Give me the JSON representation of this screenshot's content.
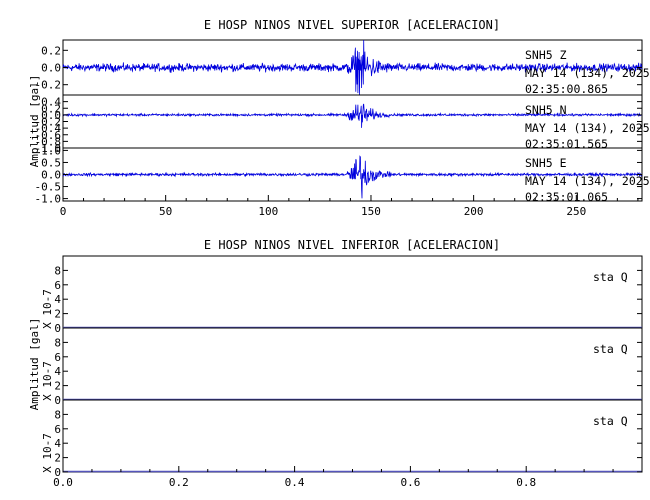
{
  "figure": {
    "upper_title": "E HOSP NINOS NIVEL SUPERIOR [ACELERACION]",
    "lower_title": "E HOSP NINOS NIVEL INFERIOR [ACELERACION]",
    "ylabel_upper": "Amplitud [gal]",
    "ylabel_lower": "Amplitud [gal]",
    "scale_label": "X 10-7",
    "trace_color": "#0000dd",
    "flat_color": "#5555bb"
  },
  "chart_data": [
    {
      "type": "line",
      "title": "E HOSP NINOS NIVEL SUPERIOR [ACELERACION]",
      "ylabel": "Amplitud [gal]",
      "xlabel": "",
      "xlim": [
        0,
        282
      ],
      "x_ticks": [
        "0",
        "50",
        "100",
        "150",
        "200",
        "250"
      ],
      "event_window_s": [
        138,
        160
      ],
      "event_peak_s": 145,
      "series": [
        {
          "name": "SNH5 Z",
          "component": "Z",
          "station_label": "SNH5 Z",
          "date_label": "MAY 14 (134), 2025",
          "time_label": "02:35:00.865",
          "ylim": [
            -0.32,
            0.32
          ],
          "y_ticks": [
            "0.2",
            "0.0",
            "-0.2"
          ],
          "noise_amplitude": 0.04,
          "peak_amplitude": 0.3
        },
        {
          "name": "SNH5 N",
          "component": "N",
          "station_label": "SNH5 N",
          "date_label": "MAY 14 (134), 2025",
          "time_label": "02:35:01.565",
          "ylim": [
            -1.0,
            0.6
          ],
          "y_ticks": [
            "0.4",
            "0.2",
            "0.0",
            "-0.2",
            "-0.4",
            "-0.6",
            "-0.8",
            "-1.0"
          ],
          "noise_amplitude": 0.03,
          "peak_amplitude": 0.45
        },
        {
          "name": "SNH5 E",
          "component": "E",
          "station_label": "SNH5 E",
          "date_label": "MAY 14 (134), 2025",
          "time_label": "02:35:01.065",
          "ylim": [
            -1.1,
            1.1
          ],
          "y_ticks": [
            "1.0",
            "0.5",
            "0.0",
            "-0.5",
            "-1.0"
          ],
          "noise_amplitude": 0.05,
          "peak_amplitude": 0.9
        }
      ]
    },
    {
      "type": "line",
      "title": "E HOSP NINOS NIVEL INFERIOR [ACELERACION]",
      "ylabel": "Amplitud [gal]",
      "xlabel": "",
      "xlim": [
        0,
        1
      ],
      "x_ticks": [
        "0.0",
        "0.2",
        "0.4",
        "0.6",
        "0.8"
      ],
      "series": [
        {
          "name": "sta Q",
          "station_label": "sta Q",
          "ylim": [
            0,
            10
          ],
          "y_ticks": [
            "8",
            "6",
            "4",
            "2",
            "0"
          ],
          "scale_label": "X 10-7",
          "values": [
            0,
            0
          ]
        },
        {
          "name": "sta Q",
          "station_label": "sta Q",
          "ylim": [
            0,
            10
          ],
          "y_ticks": [
            "8",
            "6",
            "4",
            "2",
            "0"
          ],
          "scale_label": "X 10-7",
          "values": [
            0,
            0
          ]
        },
        {
          "name": "sta Q",
          "station_label": "sta Q",
          "ylim": [
            0,
            10
          ],
          "y_ticks": [
            "8",
            "6",
            "4",
            "2",
            "0"
          ],
          "scale_label": "X 10-7",
          "values": [
            0,
            0
          ]
        }
      ]
    }
  ]
}
